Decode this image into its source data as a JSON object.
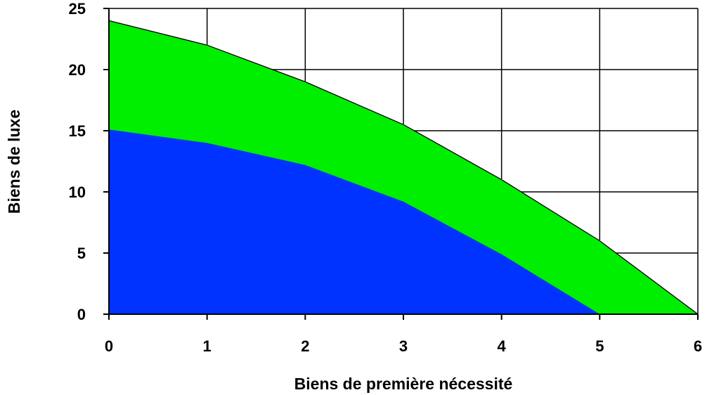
{
  "chart_data": {
    "type": "area",
    "xlabel": "Biens de première nécessité",
    "ylabel": "Biens de luxe",
    "xlim": [
      0,
      6
    ],
    "ylim": [
      0,
      25
    ],
    "x_ticks": [
      "0",
      "1",
      "2",
      "3",
      "4",
      "5",
      "6"
    ],
    "y_ticks": [
      "0",
      "5",
      "10",
      "15",
      "20",
      "25"
    ],
    "grid": true,
    "x": [
      0,
      1,
      2,
      3,
      4,
      5,
      6
    ],
    "series": [
      {
        "values": [
          24,
          22,
          19,
          15.5,
          11,
          6,
          0
        ],
        "color": "#00ee00"
      },
      {
        "values": [
          15.1,
          14,
          12.2,
          9.2,
          4.9,
          0,
          0
        ],
        "color": "#0033ff"
      }
    ]
  }
}
